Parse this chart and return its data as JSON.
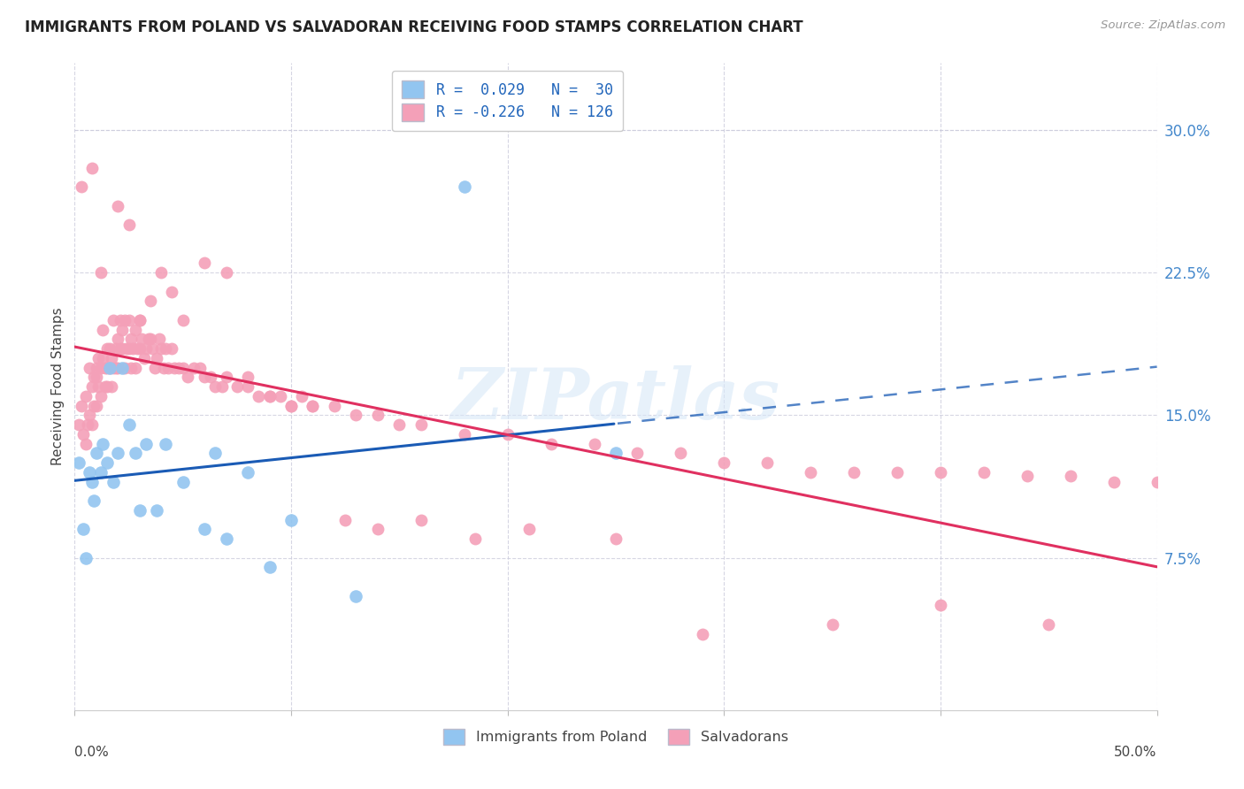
{
  "title": "IMMIGRANTS FROM POLAND VS SALVADORAN RECEIVING FOOD STAMPS CORRELATION CHART",
  "source": "Source: ZipAtlas.com",
  "ylabel": "Receiving Food Stamps",
  "ytick_vals": [
    0.075,
    0.15,
    0.225,
    0.3
  ],
  "ytick_labels": [
    "7.5%",
    "15.0%",
    "22.5%",
    "30.0%"
  ],
  "xlim": [
    0.0,
    0.5
  ],
  "ylim": [
    -0.005,
    0.335
  ],
  "legend_label1": "R =  0.029   N =  30",
  "legend_label2": "R = -0.226   N = 126",
  "bottom_legend1": "Immigrants from Poland",
  "bottom_legend2": "Salvadorans",
  "color_blue": "#92C5F0",
  "color_pink": "#F4A0B8",
  "line_blue": "#1A5BB5",
  "line_pink": "#E03060",
  "watermark": "ZIPatlas",
  "blue_x": [
    0.002,
    0.004,
    0.005,
    0.007,
    0.008,
    0.009,
    0.01,
    0.012,
    0.013,
    0.015,
    0.016,
    0.018,
    0.02,
    0.022,
    0.025,
    0.028,
    0.03,
    0.033,
    0.038,
    0.042,
    0.05,
    0.06,
    0.065,
    0.07,
    0.08,
    0.09,
    0.1,
    0.13,
    0.18,
    0.25
  ],
  "blue_y": [
    0.125,
    0.09,
    0.075,
    0.12,
    0.115,
    0.105,
    0.13,
    0.12,
    0.135,
    0.125,
    0.175,
    0.115,
    0.13,
    0.175,
    0.145,
    0.13,
    0.1,
    0.135,
    0.1,
    0.135,
    0.115,
    0.09,
    0.13,
    0.085,
    0.12,
    0.07,
    0.095,
    0.055,
    0.27,
    0.13
  ],
  "pink_x": [
    0.002,
    0.003,
    0.004,
    0.005,
    0.005,
    0.006,
    0.007,
    0.007,
    0.008,
    0.008,
    0.009,
    0.009,
    0.01,
    0.01,
    0.01,
    0.011,
    0.011,
    0.012,
    0.012,
    0.013,
    0.013,
    0.014,
    0.014,
    0.015,
    0.015,
    0.015,
    0.016,
    0.016,
    0.017,
    0.017,
    0.018,
    0.018,
    0.019,
    0.019,
    0.02,
    0.02,
    0.021,
    0.021,
    0.022,
    0.022,
    0.023,
    0.023,
    0.024,
    0.025,
    0.025,
    0.026,
    0.026,
    0.027,
    0.028,
    0.028,
    0.029,
    0.03,
    0.03,
    0.031,
    0.032,
    0.033,
    0.034,
    0.035,
    0.036,
    0.037,
    0.038,
    0.039,
    0.04,
    0.041,
    0.042,
    0.043,
    0.045,
    0.046,
    0.048,
    0.05,
    0.052,
    0.055,
    0.058,
    0.06,
    0.063,
    0.065,
    0.068,
    0.07,
    0.075,
    0.08,
    0.085,
    0.09,
    0.095,
    0.1,
    0.105,
    0.11,
    0.12,
    0.13,
    0.14,
    0.15,
    0.16,
    0.18,
    0.2,
    0.22,
    0.24,
    0.26,
    0.28,
    0.3,
    0.32,
    0.34,
    0.36,
    0.38,
    0.4,
    0.42,
    0.44,
    0.46,
    0.48,
    0.5,
    0.003,
    0.008,
    0.012,
    0.02,
    0.025,
    0.03,
    0.035,
    0.04,
    0.045,
    0.05,
    0.06,
    0.07,
    0.08,
    0.09,
    0.1,
    0.11,
    0.125,
    0.14,
    0.16,
    0.185,
    0.21,
    0.25,
    0.29,
    0.35,
    0.4,
    0.45
  ],
  "pink_y": [
    0.145,
    0.155,
    0.14,
    0.16,
    0.135,
    0.145,
    0.175,
    0.15,
    0.165,
    0.145,
    0.17,
    0.155,
    0.175,
    0.155,
    0.17,
    0.165,
    0.18,
    0.16,
    0.175,
    0.18,
    0.195,
    0.165,
    0.175,
    0.165,
    0.185,
    0.175,
    0.175,
    0.185,
    0.165,
    0.18,
    0.2,
    0.175,
    0.185,
    0.175,
    0.19,
    0.175,
    0.2,
    0.185,
    0.185,
    0.195,
    0.2,
    0.175,
    0.185,
    0.2,
    0.185,
    0.19,
    0.175,
    0.185,
    0.195,
    0.175,
    0.185,
    0.2,
    0.185,
    0.19,
    0.18,
    0.185,
    0.19,
    0.19,
    0.185,
    0.175,
    0.18,
    0.19,
    0.185,
    0.175,
    0.185,
    0.175,
    0.185,
    0.175,
    0.175,
    0.175,
    0.17,
    0.175,
    0.175,
    0.17,
    0.17,
    0.165,
    0.165,
    0.17,
    0.165,
    0.165,
    0.16,
    0.16,
    0.16,
    0.155,
    0.16,
    0.155,
    0.155,
    0.15,
    0.15,
    0.145,
    0.145,
    0.14,
    0.14,
    0.135,
    0.135,
    0.13,
    0.13,
    0.125,
    0.125,
    0.12,
    0.12,
    0.12,
    0.12,
    0.12,
    0.118,
    0.118,
    0.115,
    0.115,
    0.27,
    0.28,
    0.225,
    0.26,
    0.25,
    0.2,
    0.21,
    0.225,
    0.215,
    0.2,
    0.23,
    0.225,
    0.17,
    0.16,
    0.155,
    0.155,
    0.095,
    0.09,
    0.095,
    0.085,
    0.09,
    0.085,
    0.035,
    0.04,
    0.05,
    0.04
  ]
}
